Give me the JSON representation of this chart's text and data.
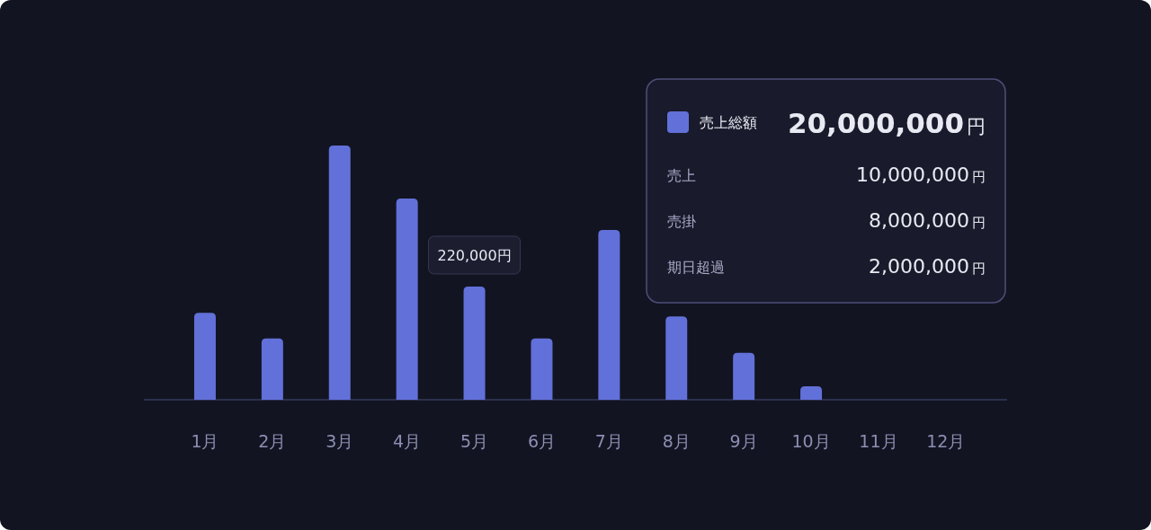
{
  "chart_data": {
    "type": "bar",
    "categories": [
      "1月",
      "2月",
      "3月",
      "4月",
      "5月",
      "6月",
      "7月",
      "8月",
      "9月",
      "10月",
      "11月",
      "12月"
    ],
    "series": [
      {
        "name": "売上総額",
        "color": "#6270d9",
        "values": [
          169000,
          119000,
          494000,
          391000,
          220000,
          119000,
          330000,
          162000,
          91000,
          26000,
          null,
          null
        ],
        "value_labels": [
          null,
          null,
          null,
          null,
          "220,000円",
          null,
          null,
          null,
          null,
          null,
          null,
          null
        ]
      }
    ],
    "legend": "top right",
    "annotations": [
      "20,000,000円",
      "売上",
      "10,000,000円",
      "売掛",
      "8,000,000円",
      "期日超過",
      "2,000,000円"
    ]
  }
}
